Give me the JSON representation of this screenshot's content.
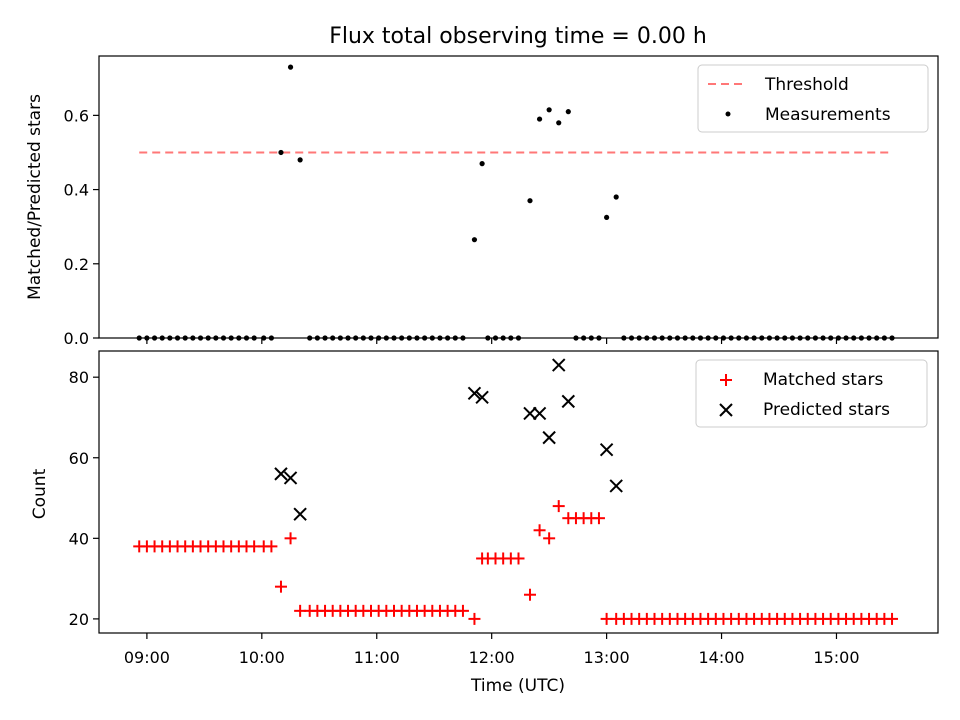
{
  "chart_data": [
    {
      "type": "scatter",
      "title": "Flux total observing time = 0.00 h",
      "ylabel": "Matched/Predicted stars",
      "xlabel": "",
      "ylim": [
        0,
        0.76
      ],
      "yticks": [
        0.0,
        0.2,
        0.4,
        0.6
      ],
      "ytick_labels": [
        "0.0",
        "0.2",
        "0.4",
        "0.6"
      ],
      "legend_position": "upper right",
      "threshold": {
        "name": "Threshold",
        "value": 0.5,
        "x_start": "08:56",
        "x_end": "15:29",
        "color": "#ff7777",
        "style": "dashed"
      },
      "series": [
        {
          "name": "Measurements",
          "color": "#000000",
          "marker": "dot",
          "points": [
            [
              "08:56",
              0
            ],
            [
              "09:00",
              0
            ],
            [
              "09:04",
              0
            ],
            [
              "09:08",
              0
            ],
            [
              "09:12",
              0
            ],
            [
              "09:16",
              0
            ],
            [
              "09:20",
              0
            ],
            [
              "09:24",
              0
            ],
            [
              "09:28",
              0
            ],
            [
              "09:32",
              0
            ],
            [
              "09:36",
              0
            ],
            [
              "09:40",
              0
            ],
            [
              "09:44",
              0
            ],
            [
              "09:48",
              0
            ],
            [
              "09:52",
              0
            ],
            [
              "09:56",
              0
            ],
            [
              "10:01",
              0
            ],
            [
              "10:05",
              0
            ],
            [
              "10:10",
              0.5
            ],
            [
              "10:15",
              0.73
            ],
            [
              "10:20",
              0.48
            ],
            [
              "10:25",
              0
            ],
            [
              "10:29",
              0
            ],
            [
              "10:33",
              0
            ],
            [
              "10:37",
              0
            ],
            [
              "10:41",
              0
            ],
            [
              "10:45",
              0
            ],
            [
              "10:49",
              0
            ],
            [
              "10:53",
              0
            ],
            [
              "10:57",
              0
            ],
            [
              "11:01",
              0
            ],
            [
              "11:05",
              0
            ],
            [
              "11:09",
              0
            ],
            [
              "11:13",
              0
            ],
            [
              "11:17",
              0
            ],
            [
              "11:21",
              0
            ],
            [
              "11:25",
              0
            ],
            [
              "11:29",
              0
            ],
            [
              "11:33",
              0
            ],
            [
              "11:37",
              0
            ],
            [
              "11:41",
              0
            ],
            [
              "11:45",
              0
            ],
            [
              "11:51",
              0.265
            ],
            [
              "11:55",
              0.47
            ],
            [
              "11:58",
              0
            ],
            [
              "12:02",
              0
            ],
            [
              "12:06",
              0
            ],
            [
              "12:10",
              0
            ],
            [
              "12:14",
              0
            ],
            [
              "12:20",
              0.37
            ],
            [
              "12:25",
              0.59
            ],
            [
              "12:30",
              0.615
            ],
            [
              "12:35",
              0.58
            ],
            [
              "12:40",
              0.61
            ],
            [
              "12:44",
              0
            ],
            [
              "12:48",
              0
            ],
            [
              "12:52",
              0
            ],
            [
              "12:56",
              0
            ],
            [
              "13:00",
              0.325
            ],
            [
              "13:05",
              0.38
            ],
            [
              "13:09",
              0
            ],
            [
              "13:13",
              0
            ],
            [
              "13:17",
              0
            ],
            [
              "13:21",
              0
            ],
            [
              "13:25",
              0
            ],
            [
              "13:29",
              0
            ],
            [
              "13:33",
              0
            ],
            [
              "13:37",
              0
            ],
            [
              "13:41",
              0
            ],
            [
              "13:45",
              0
            ],
            [
              "13:49",
              0
            ],
            [
              "13:53",
              0
            ],
            [
              "13:57",
              0
            ],
            [
              "14:01",
              0
            ],
            [
              "14:05",
              0
            ],
            [
              "14:09",
              0
            ],
            [
              "14:13",
              0
            ],
            [
              "14:17",
              0
            ],
            [
              "14:21",
              0
            ],
            [
              "14:25",
              0
            ],
            [
              "14:29",
              0
            ],
            [
              "14:33",
              0
            ],
            [
              "14:37",
              0
            ],
            [
              "14:41",
              0
            ],
            [
              "14:45",
              0
            ],
            [
              "14:49",
              0
            ],
            [
              "14:53",
              0
            ],
            [
              "14:57",
              0
            ],
            [
              "15:01",
              0
            ],
            [
              "15:05",
              0
            ],
            [
              "15:09",
              0
            ],
            [
              "15:13",
              0
            ],
            [
              "15:17",
              0
            ],
            [
              "15:21",
              0
            ],
            [
              "15:25",
              0
            ],
            [
              "15:29",
              0
            ]
          ]
        }
      ]
    },
    {
      "type": "scatter",
      "title": "",
      "ylabel": "Count",
      "xlabel": "Time (UTC)",
      "ylim": [
        16.5,
        86.5
      ],
      "yticks": [
        20,
        40,
        60,
        80
      ],
      "ytick_labels": [
        "20",
        "40",
        "60",
        "80"
      ],
      "legend_position": "upper right",
      "series": [
        {
          "name": "Matched stars",
          "color": "#ff0000",
          "marker": "plus",
          "points": [
            [
              "08:56",
              38
            ],
            [
              "09:00",
              38
            ],
            [
              "09:04",
              38
            ],
            [
              "09:08",
              38
            ],
            [
              "09:12",
              38
            ],
            [
              "09:16",
              38
            ],
            [
              "09:20",
              38
            ],
            [
              "09:24",
              38
            ],
            [
              "09:28",
              38
            ],
            [
              "09:32",
              38
            ],
            [
              "09:36",
              38
            ],
            [
              "09:40",
              38
            ],
            [
              "09:44",
              38
            ],
            [
              "09:48",
              38
            ],
            [
              "09:52",
              38
            ],
            [
              "09:56",
              38
            ],
            [
              "10:01",
              38
            ],
            [
              "10:05",
              38
            ],
            [
              "10:10",
              28
            ],
            [
              "10:15",
              40
            ],
            [
              "10:20",
              22
            ],
            [
              "10:25",
              22
            ],
            [
              "10:29",
              22
            ],
            [
              "10:33",
              22
            ],
            [
              "10:37",
              22
            ],
            [
              "10:41",
              22
            ],
            [
              "10:45",
              22
            ],
            [
              "10:49",
              22
            ],
            [
              "10:53",
              22
            ],
            [
              "10:57",
              22
            ],
            [
              "11:01",
              22
            ],
            [
              "11:05",
              22
            ],
            [
              "11:09",
              22
            ],
            [
              "11:13",
              22
            ],
            [
              "11:17",
              22
            ],
            [
              "11:21",
              22
            ],
            [
              "11:25",
              22
            ],
            [
              "11:29",
              22
            ],
            [
              "11:33",
              22
            ],
            [
              "11:37",
              22
            ],
            [
              "11:41",
              22
            ],
            [
              "11:45",
              22
            ],
            [
              "11:51",
              20
            ],
            [
              "11:55",
              35
            ],
            [
              "11:58",
              35
            ],
            [
              "12:02",
              35
            ],
            [
              "12:06",
              35
            ],
            [
              "12:10",
              35
            ],
            [
              "12:14",
              35
            ],
            [
              "12:20",
              26
            ],
            [
              "12:25",
              42
            ],
            [
              "12:30",
              40
            ],
            [
              "12:35",
              48
            ],
            [
              "12:40",
              45
            ],
            [
              "12:44",
              45
            ],
            [
              "12:48",
              45
            ],
            [
              "12:52",
              45
            ],
            [
              "12:56",
              45
            ],
            [
              "13:00",
              20
            ],
            [
              "13:05",
              20
            ],
            [
              "13:09",
              20
            ],
            [
              "13:13",
              20
            ],
            [
              "13:17",
              20
            ],
            [
              "13:21",
              20
            ],
            [
              "13:25",
              20
            ],
            [
              "13:29",
              20
            ],
            [
              "13:33",
              20
            ],
            [
              "13:37",
              20
            ],
            [
              "13:41",
              20
            ],
            [
              "13:45",
              20
            ],
            [
              "13:49",
              20
            ],
            [
              "13:53",
              20
            ],
            [
              "13:57",
              20
            ],
            [
              "14:01",
              20
            ],
            [
              "14:05",
              20
            ],
            [
              "14:09",
              20
            ],
            [
              "14:13",
              20
            ],
            [
              "14:17",
              20
            ],
            [
              "14:21",
              20
            ],
            [
              "14:25",
              20
            ],
            [
              "14:29",
              20
            ],
            [
              "14:33",
              20
            ],
            [
              "14:37",
              20
            ],
            [
              "14:41",
              20
            ],
            [
              "14:45",
              20
            ],
            [
              "14:49",
              20
            ],
            [
              "14:53",
              20
            ],
            [
              "14:57",
              20
            ],
            [
              "15:01",
              20
            ],
            [
              "15:05",
              20
            ],
            [
              "15:09",
              20
            ],
            [
              "15:13",
              20
            ],
            [
              "15:17",
              20
            ],
            [
              "15:21",
              20
            ],
            [
              "15:25",
              20
            ],
            [
              "15:29",
              20
            ]
          ]
        },
        {
          "name": "Predicted stars",
          "color": "#000000",
          "marker": "x",
          "points": [
            [
              "10:10",
              56
            ],
            [
              "10:15",
              55
            ],
            [
              "10:20",
              46
            ],
            [
              "11:51",
              76
            ],
            [
              "11:55",
              75
            ],
            [
              "12:20",
              71
            ],
            [
              "12:25",
              71
            ],
            [
              "12:30",
              65
            ],
            [
              "12:35",
              83
            ],
            [
              "12:40",
              74
            ],
            [
              "13:00",
              62
            ],
            [
              "13:05",
              53
            ]
          ]
        }
      ]
    }
  ],
  "x_axis": {
    "xlim": [
      "08:35",
      "15:53"
    ],
    "ticks": [
      "09:00",
      "10:00",
      "11:00",
      "12:00",
      "13:00",
      "14:00",
      "15:00"
    ]
  }
}
